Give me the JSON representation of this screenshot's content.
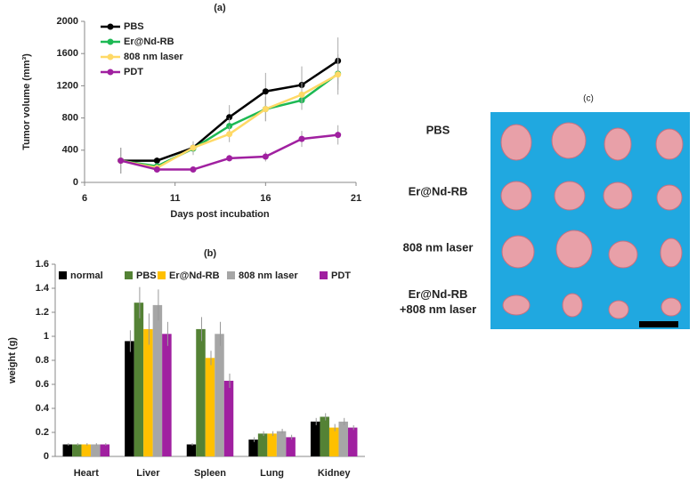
{
  "chart_data": [
    {
      "type": "line",
      "title": "(a)",
      "x_label": "Days post incubation",
      "y_label": "Tumor volume (mm³)",
      "x": [
        8,
        10,
        12,
        14,
        16,
        18,
        20
      ],
      "xlim": [
        6,
        21
      ],
      "xticks": [
        6,
        11,
        16,
        21
      ],
      "ylim": [
        0,
        2000
      ],
      "yticks": [
        0,
        400,
        800,
        1200,
        1600,
        2000
      ],
      "legend": "upper left",
      "series": [
        {
          "name": "PBS",
          "color": "#000000",
          "values": [
            270,
            270,
            430,
            810,
            1130,
            1210,
            1510
          ],
          "errors": [
            160,
            40,
            80,
            150,
            230,
            230,
            290
          ]
        },
        {
          "name": "Er@Nd-RB",
          "color": "#1db954",
          "values": [
            270,
            200,
            420,
            700,
            910,
            1020,
            1350
          ],
          "errors": [
            160,
            40,
            80,
            100,
            150,
            120,
            200
          ]
        },
        {
          "name": "808 nm laser",
          "color": "#ffd966",
          "values": [
            270,
            180,
            430,
            600,
            910,
            1090,
            1340
          ],
          "errors": [
            160,
            40,
            80,
            100,
            150,
            150,
            250
          ]
        },
        {
          "name": "PDT",
          "color": "#a020a0",
          "values": [
            270,
            160,
            160,
            300,
            320,
            540,
            590
          ],
          "errors": [
            160,
            30,
            30,
            40,
            60,
            100,
            120
          ]
        }
      ]
    },
    {
      "type": "bar",
      "title": "(b)",
      "y_label": "weight (g)",
      "categories": [
        "Heart",
        "Liver",
        "Spleen",
        "Lung",
        "Kidney"
      ],
      "ylim": [
        0,
        1.6
      ],
      "yticks": [
        0,
        0.2,
        0.4,
        0.6,
        0.8,
        1,
        1.2,
        1.4,
        1.6
      ],
      "legend": "upper",
      "series": [
        {
          "name": "normal",
          "color": "#000000",
          "values": [
            0.1,
            0.96,
            0.1,
            0.14,
            0.29
          ],
          "errors": [
            0.01,
            0.09,
            0.01,
            0.02,
            0.03
          ]
        },
        {
          "name": "PBS",
          "color": "#548235",
          "values": [
            0.1,
            1.28,
            1.06,
            0.19,
            0.33
          ],
          "errors": [
            0.01,
            0.13,
            0.1,
            0.02,
            0.03
          ]
        },
        {
          "name": "Er@Nd-RB",
          "color": "#ffc000",
          "values": [
            0.1,
            1.06,
            0.82,
            0.19,
            0.24
          ],
          "errors": [
            0.01,
            0.13,
            0.06,
            0.02,
            0.03
          ]
        },
        {
          "name": "808 nm laser",
          "color": "#a6a6a6",
          "values": [
            0.1,
            1.26,
            1.02,
            0.21,
            0.29
          ],
          "errors": [
            0.01,
            0.13,
            0.1,
            0.02,
            0.03
          ]
        },
        {
          "name": "PDT",
          "color": "#a020a0",
          "values": [
            0.1,
            1.02,
            0.63,
            0.16,
            0.24
          ],
          "errors": [
            0.01,
            0.1,
            0.06,
            0.02,
            0.02
          ]
        }
      ]
    }
  ],
  "photo": {
    "title": "(c)",
    "row_labels": [
      [
        "PBS"
      ],
      [
        "Er@Nd-RB"
      ],
      [
        "808 nm laser"
      ],
      [
        "Er@Nd-RB",
        "+808 nm laser"
      ]
    ]
  }
}
